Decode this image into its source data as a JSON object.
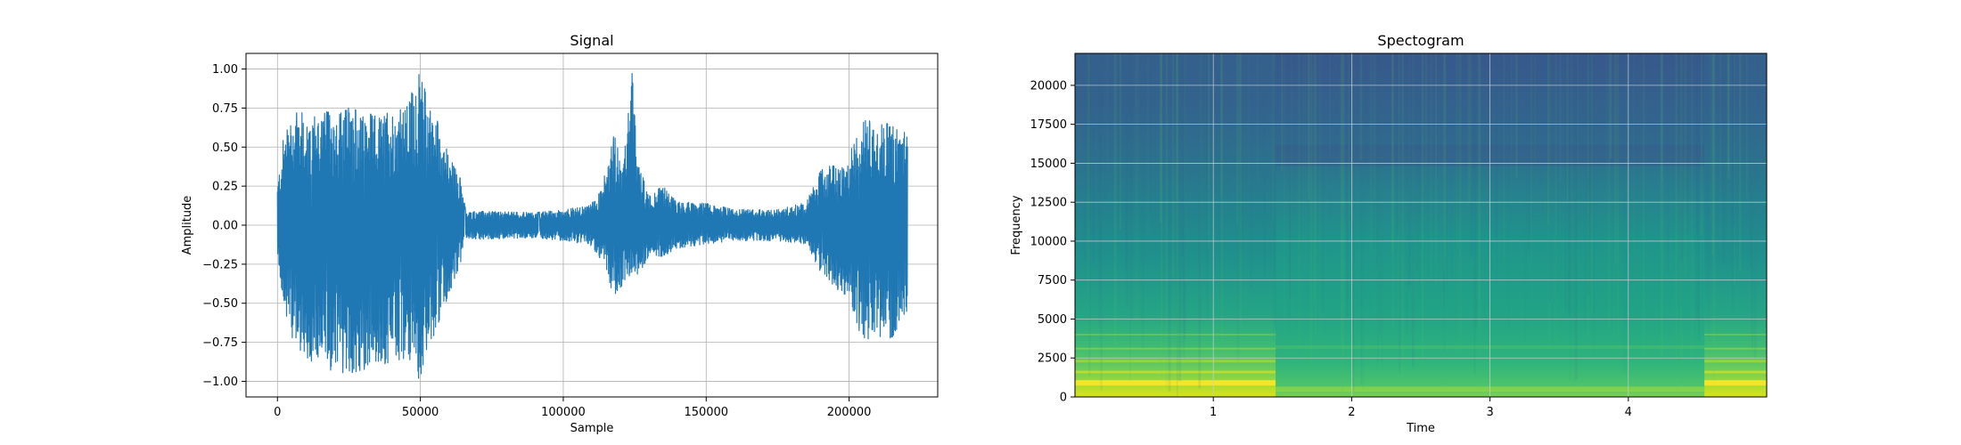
{
  "chart_data": [
    {
      "type": "line",
      "title": "Signal",
      "xlabel": "Sample",
      "ylabel": "Amplitude",
      "xlim": [
        -11000,
        231000
      ],
      "ylim": [
        -1.1,
        1.1
      ],
      "grid": true,
      "color": "#1f77b4",
      "x_ticks": [
        0,
        50000,
        100000,
        150000,
        200000
      ],
      "x_tick_labels": [
        "0",
        "50000",
        "100000",
        "150000",
        "200000"
      ],
      "y_ticks": [
        -1.0,
        -0.75,
        -0.5,
        -0.25,
        0.0,
        0.25,
        0.5,
        0.75,
        1.0
      ],
      "y_tick_labels": [
        "−1.00",
        "−0.75",
        "−0.50",
        "−0.25",
        "0.00",
        "0.25",
        "0.50",
        "0.75",
        "1.00"
      ],
      "x_range": [
        0,
        220500
      ],
      "envelope": {
        "x": [
          0,
          2000,
          6000,
          15000,
          25000,
          35000,
          45000,
          50000,
          52000,
          55000,
          60000,
          64000,
          66000,
          70000,
          90000,
          100000,
          108000,
          112000,
          115000,
          118000,
          121000,
          124000,
          126000,
          130000,
          135000,
          140000,
          150000,
          160000,
          175000,
          185000,
          190000,
          195000,
          199000,
          202000,
          205000,
          210000,
          215000,
          220500
        ],
        "upper": [
          0.25,
          0.55,
          0.72,
          0.72,
          0.75,
          0.7,
          0.75,
          1.0,
          0.85,
          0.72,
          0.45,
          0.3,
          0.08,
          0.09,
          0.08,
          0.1,
          0.12,
          0.18,
          0.35,
          0.6,
          0.38,
          1.0,
          0.4,
          0.2,
          0.25,
          0.15,
          0.14,
          0.1,
          0.1,
          0.15,
          0.35,
          0.4,
          0.35,
          0.6,
          0.68,
          0.65,
          0.65,
          0.6
        ],
        "lower": [
          -0.2,
          -0.5,
          -0.78,
          -0.92,
          -0.95,
          -0.9,
          -0.85,
          -1.0,
          -0.8,
          -0.72,
          -0.45,
          -0.25,
          -0.08,
          -0.09,
          -0.08,
          -0.1,
          -0.12,
          -0.18,
          -0.3,
          -0.48,
          -0.38,
          -0.3,
          -0.33,
          -0.2,
          -0.2,
          -0.15,
          -0.12,
          -0.1,
          -0.1,
          -0.12,
          -0.3,
          -0.4,
          -0.45,
          -0.6,
          -0.75,
          -0.75,
          -0.72,
          -0.55
        ]
      }
    },
    {
      "type": "heatmap",
      "title": "Spectogram",
      "xlabel": "Time",
      "ylabel": "Frequency",
      "xlim": [
        0.0,
        5.0
      ],
      "ylim": [
        0,
        22050
      ],
      "grid": true,
      "x_ticks": [
        1,
        2,
        3,
        4
      ],
      "x_tick_labels": [
        "1",
        "2",
        "3",
        "4"
      ],
      "y_ticks": [
        0,
        2500,
        5000,
        7500,
        10000,
        12500,
        15000,
        17500,
        20000
      ],
      "y_tick_labels": [
        "0",
        "2500",
        "5000",
        "7500",
        "10000",
        "12500",
        "15000",
        "17500",
        "20000"
      ],
      "colormap": [
        "#440154",
        "#3b528b",
        "#21918c",
        "#5ec962",
        "#fde725"
      ],
      "loud_segments": [
        [
          0.0,
          1.45
        ],
        [
          4.55,
          5.0
        ]
      ],
      "quiet_segments": [
        [
          1.45,
          4.55
        ]
      ]
    }
  ]
}
